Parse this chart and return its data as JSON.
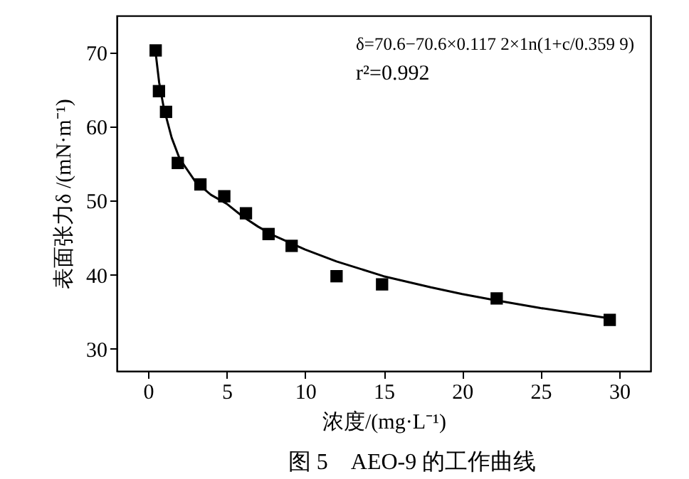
{
  "chart_data": {
    "type": "scatter",
    "xlabel": "浓度/(mg·L⁻¹)",
    "ylabel": "表面张力δ /(mN·m⁻¹)",
    "xlim": [
      -2,
      32
    ],
    "xticks": [
      0,
      5,
      10,
      15,
      20,
      25,
      30
    ],
    "ylim": [
      27,
      75
    ],
    "yticks": [
      30,
      40,
      50,
      60,
      70
    ],
    "grid": false,
    "series": [
      {
        "type": "scatter",
        "marker": "square",
        "color": "#000000",
        "x": [
          0.48,
          0.69,
          1.14,
          1.89,
          3.33,
          4.85,
          6.23,
          7.67,
          9.14,
          12.0,
          14.9,
          22.2,
          29.4
        ],
        "values": [
          70.3,
          64.8,
          62.0,
          55.1,
          52.2,
          50.6,
          48.3,
          45.5,
          43.9,
          39.8,
          38.7,
          36.8,
          33.9
        ]
      },
      {
        "type": "line",
        "line_style": "solid",
        "color": "#000000",
        "x": [
          0.45,
          0.7,
          1.0,
          1.5,
          2,
          3,
          4,
          5,
          6,
          7,
          8,
          10,
          12,
          15,
          18,
          20,
          22,
          25,
          29.4
        ],
        "values": [
          70.5,
          66.0,
          62.5,
          58.5,
          55.7,
          52.6,
          50.8,
          49.6,
          47.9,
          46.5,
          45.3,
          43.4,
          41.8,
          39.8,
          38.3,
          37.4,
          36.6,
          35.5,
          34.1
        ]
      }
    ],
    "annotations": [
      "δ=70.6−70.6×0.117 2×1n(1+c/0.359 9)",
      "r²=0.992",
      "图 5　AEO-9 的工作曲线"
    ]
  }
}
